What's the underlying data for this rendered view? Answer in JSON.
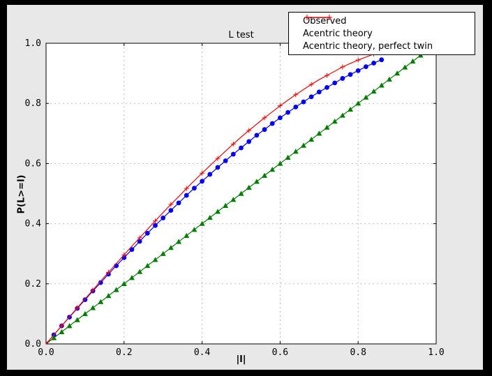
{
  "figure_background": "#e8e8e8",
  "frame_background": "#000000",
  "chart_data": {
    "type": "line",
    "title": "L test",
    "xlabel": "|l|",
    "ylabel": "P(L>=l)",
    "xlim": [
      0.0,
      1.0
    ],
    "ylim": [
      0.0,
      1.0
    ],
    "xticks": [
      0.0,
      0.2,
      0.4,
      0.6,
      0.8,
      1.0
    ],
    "yticks": [
      0.0,
      0.2,
      0.4,
      0.6,
      0.8,
      1.0
    ],
    "xtick_labels": [
      "0.0",
      "0.2",
      "0.4",
      "0.6",
      "0.8",
      "1.0"
    ],
    "ytick_labels": [
      "0.0",
      "0.2",
      "0.4",
      "0.6",
      "0.8",
      "1.0"
    ],
    "grid": true,
    "grid_style": "dashed",
    "grid_color": "#bfbfbf",
    "axes_background": "#ffffff",
    "spine_color": "#000000",
    "legend_position": "upper right",
    "series": [
      {
        "name": "Observed",
        "color": "#0000ff",
        "marker": "circle",
        "marker_every": 1,
        "x": [
          0.0,
          0.02,
          0.04,
          0.06,
          0.08,
          0.1,
          0.12,
          0.14,
          0.16,
          0.18,
          0.2,
          0.22,
          0.24,
          0.26,
          0.28,
          0.3,
          0.32,
          0.34,
          0.36,
          0.38,
          0.4,
          0.42,
          0.44,
          0.46,
          0.48,
          0.5,
          0.52,
          0.54,
          0.56,
          0.58,
          0.6,
          0.62,
          0.64,
          0.66,
          0.68,
          0.7,
          0.72,
          0.74,
          0.76,
          0.78,
          0.8,
          0.82,
          0.84,
          0.86
        ],
        "y": [
          0.0,
          0.03,
          0.06,
          0.089,
          0.118,
          0.147,
          0.176,
          0.204,
          0.232,
          0.26,
          0.287,
          0.314,
          0.341,
          0.368,
          0.394,
          0.419,
          0.444,
          0.469,
          0.494,
          0.518,
          0.541,
          0.564,
          0.587,
          0.609,
          0.631,
          0.652,
          0.673,
          0.694,
          0.713,
          0.733,
          0.752,
          0.77,
          0.788,
          0.805,
          0.822,
          0.838,
          0.853,
          0.868,
          0.883,
          0.896,
          0.909,
          0.922,
          0.934,
          0.945
        ]
      },
      {
        "name": "Acentric theory",
        "color": "#007f00",
        "marker": "triangle-up",
        "marker_every": 1,
        "x": [
          0.0,
          0.02,
          0.04,
          0.06,
          0.08,
          0.1,
          0.12,
          0.14,
          0.16,
          0.18,
          0.2,
          0.22,
          0.24,
          0.26,
          0.28,
          0.3,
          0.32,
          0.34,
          0.36,
          0.38,
          0.4,
          0.42,
          0.44,
          0.46,
          0.48,
          0.5,
          0.52,
          0.54,
          0.56,
          0.58,
          0.6,
          0.62,
          0.64,
          0.66,
          0.68,
          0.7,
          0.72,
          0.74,
          0.76,
          0.78,
          0.8,
          0.82,
          0.84,
          0.86,
          0.88,
          0.9,
          0.92,
          0.94,
          0.96
        ],
        "y": [
          0.0,
          0.02,
          0.04,
          0.06,
          0.08,
          0.1,
          0.12,
          0.14,
          0.16,
          0.18,
          0.2,
          0.22,
          0.24,
          0.26,
          0.28,
          0.3,
          0.32,
          0.34,
          0.36,
          0.38,
          0.4,
          0.42,
          0.44,
          0.46,
          0.48,
          0.5,
          0.52,
          0.54,
          0.56,
          0.58,
          0.6,
          0.62,
          0.64,
          0.66,
          0.68,
          0.7,
          0.72,
          0.74,
          0.76,
          0.78,
          0.8,
          0.82,
          0.84,
          0.86,
          0.88,
          0.9,
          0.92,
          0.94,
          0.96
        ]
      },
      {
        "name": "Acentric theory, perfect twin",
        "color": "#ff0000",
        "marker": "plus",
        "marker_every": 2,
        "x": [
          0.0,
          0.02,
          0.04,
          0.06,
          0.08,
          0.1,
          0.12,
          0.14,
          0.16,
          0.18,
          0.2,
          0.22,
          0.24,
          0.26,
          0.28,
          0.3,
          0.32,
          0.34,
          0.36,
          0.38,
          0.4,
          0.42,
          0.44,
          0.46,
          0.48,
          0.5,
          0.52,
          0.54,
          0.56,
          0.58,
          0.6,
          0.62,
          0.64,
          0.66,
          0.68,
          0.7,
          0.72,
          0.74,
          0.76,
          0.78,
          0.8,
          0.82,
          0.84,
          0.86
        ],
        "y": [
          0.0,
          0.03,
          0.06,
          0.09,
          0.12,
          0.15,
          0.179,
          0.209,
          0.238,
          0.267,
          0.296,
          0.325,
          0.353,
          0.381,
          0.409,
          0.437,
          0.464,
          0.49,
          0.517,
          0.543,
          0.568,
          0.593,
          0.617,
          0.641,
          0.665,
          0.688,
          0.71,
          0.731,
          0.752,
          0.772,
          0.792,
          0.811,
          0.829,
          0.846,
          0.863,
          0.879,
          0.893,
          0.907,
          0.921,
          0.933,
          0.944,
          0.954,
          0.964,
          0.972
        ]
      }
    ]
  }
}
